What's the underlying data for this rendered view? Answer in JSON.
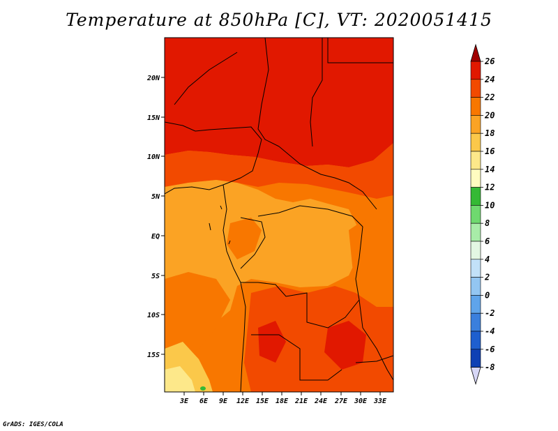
{
  "title": "Temperature at 850hPa [C], VT: 2020051415",
  "credit": "GrADS: IGES/COLA",
  "map": {
    "lat_labels": [
      "20N",
      "15N",
      "10N",
      "5N",
      "EQ",
      "5S",
      "10S",
      "15S"
    ],
    "lon_labels": [
      "3E",
      "6E",
      "9E",
      "12E",
      "15E",
      "18E",
      "21E",
      "24E",
      "27E",
      "30E",
      "33E"
    ]
  },
  "colorbar": {
    "labels": [
      "26",
      "24",
      "22",
      "20",
      "18",
      "16",
      "14",
      "12",
      "10",
      "8",
      "6",
      "4",
      "2",
      "0",
      "-2",
      "-4",
      "-6",
      "-8"
    ],
    "colors": [
      "#a00000",
      "#e11800",
      "#f24a00",
      "#f87700",
      "#fba324",
      "#fbc84a",
      "#fde88a",
      "#fffcc0",
      "#35b935",
      "#6fd96f",
      "#a8eca8",
      "#e3f7e3",
      "#c2e1f8",
      "#93c6f2",
      "#5fa4ea",
      "#3a7fdd",
      "#1e5fcf",
      "#0e40b4",
      "#062686",
      "#d6d6f6"
    ]
  }
}
